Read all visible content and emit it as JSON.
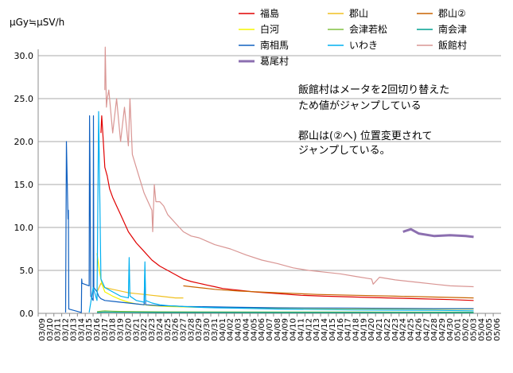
{
  "chart_data": {
    "type": "line",
    "ylabel": "μGy≒μSV/h",
    "ylim": [
      0,
      30
    ],
    "yticks": [
      "0.0",
      "5.0",
      "10.0",
      "15.0",
      "20.0",
      "25.0",
      "30.0"
    ],
    "grid": true,
    "legend_position": "top-right",
    "x_start_day": 0,
    "x_categories": [
      "03/09",
      "03/10",
      "03/11",
      "03/12",
      "03/13",
      "03/14",
      "03/15",
      "03/16",
      "03/17",
      "03/18",
      "03/19",
      "03/20",
      "03/21",
      "03/22",
      "03/23",
      "03/24",
      "03/25",
      "03/26",
      "03/27",
      "03/28",
      "03/29",
      "03/30",
      "03/31",
      "04/01",
      "04/02",
      "04/03",
      "04/04",
      "04/05",
      "04/06",
      "04/07",
      "04/08",
      "04/09",
      "04/10",
      "04/11",
      "04/12",
      "04/13",
      "04/14",
      "04/15",
      "04/16",
      "04/17",
      "04/18",
      "04/19",
      "04/20",
      "04/21",
      "04/22",
      "04/23",
      "04/24",
      "04/25",
      "04/26",
      "04/27",
      "04/28",
      "04/29",
      "04/30",
      "05/01",
      "05/02",
      "05/03",
      "05/04",
      "05/05",
      "05/06"
    ],
    "annotations": [
      "飯館村はメータを2回切り替えた",
      "ため値がジャンプしている",
      "郡山は(②へ) 位置変更されて",
      "ジャンプしている。"
    ],
    "series": [
      {
        "name": "福島",
        "color": "#e00000",
        "x": [
          7.5,
          7.6,
          7.8,
          8,
          8.3,
          8.6,
          9,
          9.5,
          10,
          11,
          12,
          13,
          14,
          15,
          16,
          17,
          18,
          19,
          20,
          21,
          22,
          23,
          24,
          25,
          27,
          30,
          33,
          36,
          40,
          44,
          48,
          52,
          55
        ],
        "y": [
          21,
          23,
          20,
          17,
          16,
          14.5,
          13.5,
          12.5,
          11.5,
          9.5,
          8.2,
          7.2,
          6.2,
          5.5,
          5.0,
          4.5,
          4.0,
          3.7,
          3.5,
          3.3,
          3.1,
          2.9,
          2.8,
          2.7,
          2.5,
          2.3,
          2.1,
          2.0,
          1.9,
          1.8,
          1.7,
          1.6,
          1.5
        ]
      },
      {
        "name": "郡山",
        "color": "#f0c020",
        "x": [
          7,
          7.5,
          8,
          9,
          10,
          11,
          12,
          13,
          14,
          15,
          16,
          17,
          18
        ],
        "y": [
          2.5,
          3.5,
          3.0,
          2.8,
          2.6,
          2.4,
          2.3,
          2.2,
          2.1,
          2.0,
          1.9,
          1.8,
          1.8
        ]
      },
      {
        "name": "郡山②",
        "color": "#c86400",
        "x": [
          18,
          20,
          22,
          25,
          30,
          35,
          40,
          45,
          50,
          55
        ],
        "y": [
          3.2,
          3.0,
          2.8,
          2.6,
          2.4,
          2.2,
          2.1,
          2.0,
          1.9,
          1.8
        ]
      },
      {
        "name": "白河",
        "color": "#f5f500",
        "x": [
          7,
          7.3,
          7.6,
          8,
          9,
          10,
          11,
          12,
          13,
          14,
          16,
          18,
          20,
          25,
          30,
          40,
          50,
          55
        ],
        "y": [
          7,
          5,
          3.5,
          2.5,
          2.0,
          1.6,
          1.3,
          1.1,
          1.0,
          0.9,
          0.8,
          0.75,
          0.7,
          0.65,
          0.6,
          0.55,
          0.5,
          0.5
        ]
      },
      {
        "name": "会津若松",
        "color": "#80c040",
        "x": [
          7,
          8,
          9,
          10,
          12,
          15,
          20,
          30,
          40,
          50,
          55
        ],
        "y": [
          0.2,
          0.3,
          0.25,
          0.22,
          0.2,
          0.18,
          0.17,
          0.16,
          0.15,
          0.14,
          0.14
        ]
      },
      {
        "name": "南会津",
        "color": "#00a090",
        "x": [
          7,
          8,
          10,
          15,
          20,
          30,
          40,
          50,
          55
        ],
        "y": [
          0.1,
          0.15,
          0.12,
          0.1,
          0.1,
          0.09,
          0.09,
          0.08,
          0.08
        ]
      },
      {
        "name": "南相馬",
        "color": "#1060c0",
        "x": [
          3,
          3.1,
          3.3,
          3.35,
          3.4,
          5,
          5.05,
          5.1,
          6,
          6.05,
          6.1,
          6.2,
          6.5,
          6.55,
          6.6,
          7,
          7.2,
          7.5,
          8,
          9,
          10,
          11,
          12,
          13,
          13.1,
          13.2,
          14,
          15,
          16,
          17,
          18,
          20,
          22,
          25,
          30,
          40,
          50,
          55
        ],
        "y": [
          0.1,
          20,
          11,
          12,
          0.5,
          0.1,
          4,
          3.5,
          3.2,
          23,
          18,
          2,
          1.5,
          23,
          3,
          2.5,
          2.0,
          1.7,
          1.5,
          1.4,
          1.3,
          1.2,
          1.1,
          1.0,
          5,
          1.0,
          0.95,
          0.9,
          0.88,
          0.85,
          0.8,
          0.78,
          0.75,
          0.7,
          0.65,
          0.6,
          0.55,
          0.55
        ]
      },
      {
        "name": "いわき",
        "color": "#00b0f0",
        "x": [
          6,
          6.5,
          7,
          7.2,
          7.5,
          8,
          9,
          10,
          11,
          11.1,
          11.2,
          12,
          13,
          13.1,
          13.2,
          14,
          15,
          16,
          18,
          20,
          22,
          25,
          30,
          40,
          50,
          55
        ],
        "y": [
          0.1,
          3.0,
          1.5,
          23.5,
          4.0,
          3.0,
          2.5,
          2.0,
          1.8,
          6.5,
          2.0,
          1.5,
          1.3,
          6.0,
          1.5,
          1.2,
          1.0,
          0.9,
          0.8,
          0.7,
          0.65,
          0.6,
          0.5,
          0.4,
          0.35,
          0.3
        ]
      },
      {
        "name": "飯館村",
        "color": "#d99694",
        "x": [
          8,
          8.05,
          8.2,
          8.3,
          8.5,
          9,
          9.5,
          10,
          10.5,
          11,
          11.2,
          11.5,
          12,
          12.5,
          13,
          13.5,
          14,
          14.1,
          14.3,
          14.5,
          15,
          15.5,
          16,
          16.5,
          17,
          18,
          19,
          20,
          21,
          22,
          24,
          26,
          28,
          30,
          32,
          34,
          36,
          38,
          40,
          42,
          42.2,
          43,
          45,
          48,
          50,
          52,
          55
        ],
        "y": [
          26,
          31,
          24,
          25,
          26,
          21,
          25,
          20,
          24,
          19.5,
          25,
          18.5,
          17,
          15.5,
          14,
          13,
          12,
          9.5,
          15,
          13,
          13,
          12.5,
          11.5,
          11,
          10.5,
          9.5,
          9.0,
          8.8,
          8.4,
          8.0,
          7.5,
          6.8,
          6.2,
          5.8,
          5.3,
          5.0,
          4.8,
          4.6,
          4.3,
          4.0,
          3.4,
          4.2,
          3.9,
          3.6,
          3.4,
          3.2,
          3.1
        ]
      },
      {
        "name": "葛尾村",
        "color": "#8c6fb0",
        "x": [
          46,
          47,
          48,
          50,
          52,
          54,
          55
        ],
        "y": [
          9.5,
          9.8,
          9.3,
          9.0,
          9.1,
          9.0,
          8.9
        ]
      }
    ]
  }
}
